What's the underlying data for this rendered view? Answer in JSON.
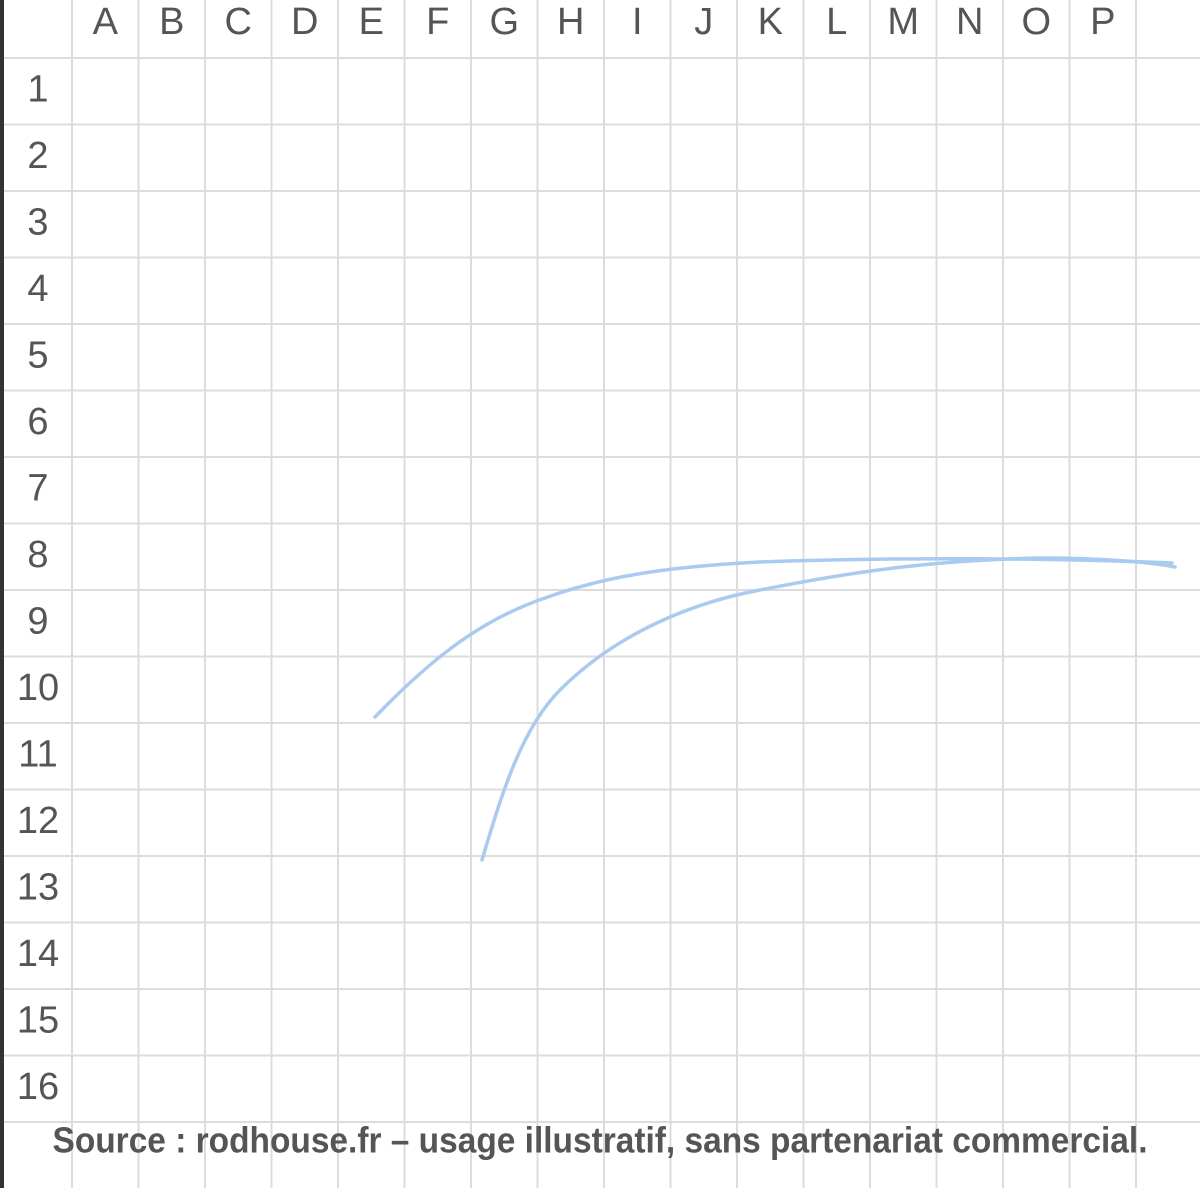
{
  "grid": {
    "columns": [
      "A",
      "B",
      "C",
      "D",
      "E",
      "F",
      "G",
      "H",
      "I",
      "J",
      "K",
      "L",
      "M",
      "N",
      "O",
      "P"
    ],
    "rows": [
      1,
      2,
      3,
      4,
      5,
      6,
      7,
      8,
      9,
      10,
      11,
      12,
      13,
      14,
      15,
      16
    ]
  },
  "footer": {
    "source": "Source : rodhouse.fr – usage illustratif, sans partenariat commercial."
  }
}
